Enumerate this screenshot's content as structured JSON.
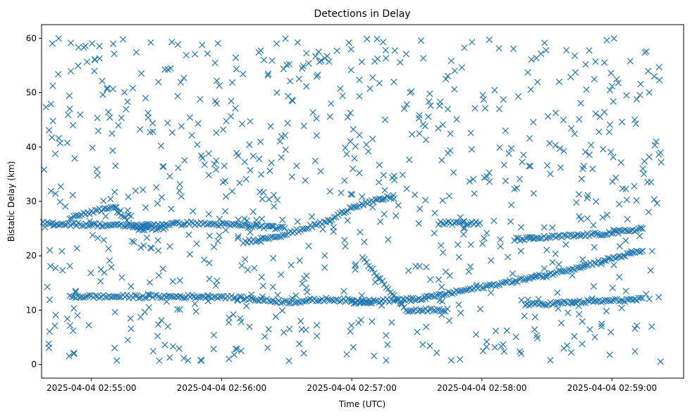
{
  "chart_data": {
    "type": "scatter",
    "title": "Detections in Delay",
    "xlabel": "Time (UTC)",
    "ylabel": "Bistatic Delay (km)",
    "x_tick_labels": [
      "2025-04-04 02:55:00",
      "2025-04-04 02:56:00",
      "2025-04-04 02:57:00",
      "2025-04-04 02:58:00",
      "2025-04-04 02:59:00"
    ],
    "x_tick_values": [
      "02:55:00",
      "02:56:00",
      "02:57:00",
      "02:58:00",
      "02:59:00"
    ],
    "xlim": [
      "02:54:37",
      "02:59:33"
    ],
    "y_ticks": [
      0,
      10,
      20,
      30,
      40,
      50,
      60
    ],
    "ylim": [
      -2.5,
      62.5
    ],
    "grid": false,
    "marker": "x",
    "marker_color": "#1f77b4",
    "series": [
      {
        "description_note": "",
        "tracks": [
          {
            "x": [
              "02:54:35",
              "02:55:20",
              "02:55:45",
              "02:56:15",
              "02:56:30"
            ],
            "y": [
              26,
              25.5,
              26,
              25.5,
              25
            ]
          },
          {
            "x": [
              "02:56:10",
              "02:56:30",
              "02:56:50",
              "02:57:00",
              "02:57:20"
            ],
            "y": [
              22.5,
              24,
              26.5,
              29,
              31
            ]
          },
          {
            "x": [
              "02:54:50",
              "02:55:10",
              "02:55:20",
              "02:55:35"
            ],
            "y": [
              27,
              29,
              25,
              25
            ]
          },
          {
            "x": [
              "02:54:50",
              "02:55:30",
              "02:56:00",
              "02:56:30",
              "02:56:50",
              "02:57:10"
            ],
            "y": [
              12.5,
              12.5,
              12.5,
              11.5,
              12,
              11.5
            ]
          },
          {
            "x": [
              "02:57:00",
              "02:57:30",
              "02:57:50",
              "02:58:10",
              "02:58:30",
              "02:58:50",
              "02:59:15"
            ],
            "y": [
              11.5,
              12,
              13.5,
              15,
              16.5,
              18.5,
              21
            ]
          },
          {
            "x": [
              "02:58:15",
              "02:58:35",
              "02:58:55",
              "02:59:15"
            ],
            "y": [
              23,
              23.5,
              24,
              25
            ]
          },
          {
            "x": [
              "02:58:20",
              "02:58:45",
              "02:59:15"
            ],
            "y": [
              11,
              11.5,
              12
            ]
          },
          {
            "x": [
              "02:57:05",
              "02:57:25",
              "02:57:45"
            ],
            "y": [
              19.5,
              10,
              10
            ]
          },
          {
            "x": [
              "02:57:40",
              "02:58:00"
            ],
            "y": [
              26,
              26
            ]
          }
        ]
      }
    ]
  }
}
